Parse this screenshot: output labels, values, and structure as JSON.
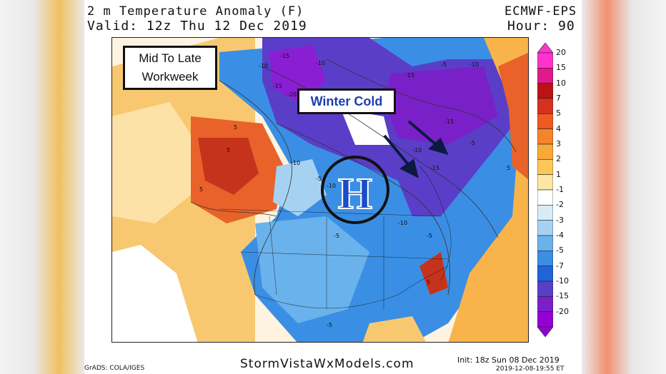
{
  "title_line1": "2 m Temperature Anomaly (F)",
  "title_line2": "Valid: 12z Thu 12 Dec 2019",
  "model": "ECMWF-EPS",
  "hour": "Hour: 90",
  "callout_period_line1": "Mid To Late",
  "callout_period_line2": "Workweek",
  "callout_cold": "Winter Cold",
  "high_pressure_symbol": "H",
  "colorbar": {
    "levels": [
      "20",
      "15",
      "10",
      "7",
      "5",
      "4",
      "3",
      "2",
      "1",
      "-1",
      "-2",
      "-3",
      "-4",
      "-5",
      "-7",
      "-10",
      "-15",
      "-20"
    ],
    "colors": [
      "#ff33cc",
      "#e01a8a",
      "#b81414",
      "#d8301e",
      "#ee5a22",
      "#f5842a",
      "#f9a83a",
      "#fbc858",
      "#fde6a6",
      "#ffffff",
      "#d8ecf8",
      "#a6d2f2",
      "#6ab2ec",
      "#3a8fe4",
      "#1f64d8",
      "#5a3ec8",
      "#7a20c8",
      "#9400d3"
    ]
  },
  "map_labels": {
    "cold_contours": [
      "-15",
      "-10",
      "-15",
      "-20",
      "-10",
      "-15",
      "-5",
      "-10",
      "-15",
      "-5",
      "-10",
      "-15",
      "-10",
      "-5",
      "-5",
      "-10",
      "-10",
      "-5",
      "-5"
    ],
    "warm_contours": [
      "5",
      "5",
      "5",
      "5",
      "5"
    ]
  },
  "credit": "GrADS: COLA/IGES",
  "website": "StormVistaWxModels.com",
  "init": "Init: 18z Sun 08 Dec 2019",
  "timestamp": "2019-12-08-19:55 ET",
  "colors": {
    "warm": "#f08a2a",
    "cold": "#2f6fdc",
    "very_cold": "#8a2bd6",
    "arrow": "#0b1a40",
    "callout_text": "#1a3fb0"
  }
}
